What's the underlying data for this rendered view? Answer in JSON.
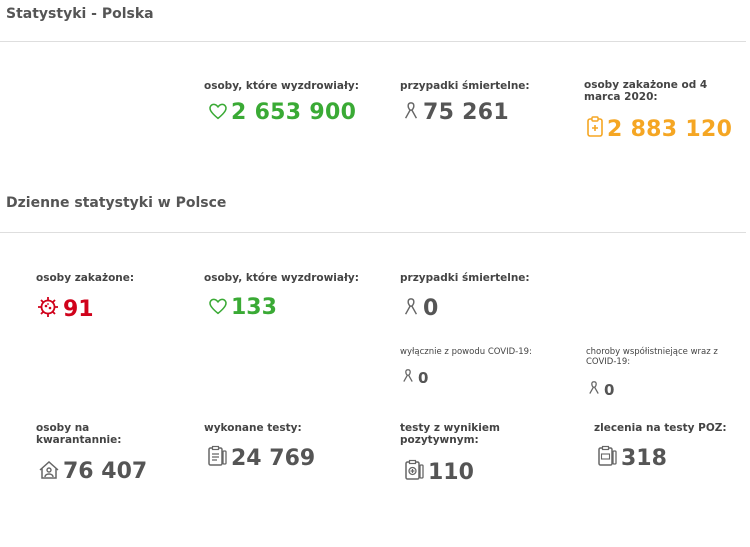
{
  "header": {
    "title": "Statystyki - Polska"
  },
  "totals": {
    "recovered": {
      "label": "osoby, które wyzdrowiały:",
      "value": "2 653 900"
    },
    "deaths": {
      "label": "przypadki śmiertelne:",
      "value": "75 261"
    },
    "infected": {
      "label": "osoby zakażone od 4 marca 2020:",
      "value": "2 883 120"
    }
  },
  "daily": {
    "title": "Dzienne statystyki w Polsce",
    "infected": {
      "label": "osoby zakażone:",
      "value": "91"
    },
    "recovered": {
      "label": "osoby, które wyzdrowiały:",
      "value": "133"
    },
    "deaths": {
      "label": "przypadki śmiertelne:",
      "value": "0"
    },
    "covid_only": {
      "label": "wyłącznie z powodu COVID-19:",
      "value": "0"
    },
    "comorbid": {
      "label": "choroby współistniejące wraz z COVID-19:",
      "value": "0"
    },
    "quarantine": {
      "label": "osoby na kwarantannie:",
      "value": "76 407"
    },
    "tests": {
      "label": "wykonane testy:",
      "value": "24 769"
    },
    "positive": {
      "label": "testy z wynikiem pozytywnym:",
      "value": "110"
    },
    "poz": {
      "label": "zlecenia na testy POZ:",
      "value": "318"
    }
  },
  "colors": {
    "green": "#3aaa35",
    "orange": "#f5a623",
    "red": "#d0021b",
    "gray": "#555555"
  },
  "icons": [
    "heart-icon",
    "ribbon-icon",
    "clipboard-plus-icon",
    "virus-icon",
    "house-person-icon",
    "test-clipboard-icon",
    "test-positive-icon",
    "test-order-icon"
  ]
}
